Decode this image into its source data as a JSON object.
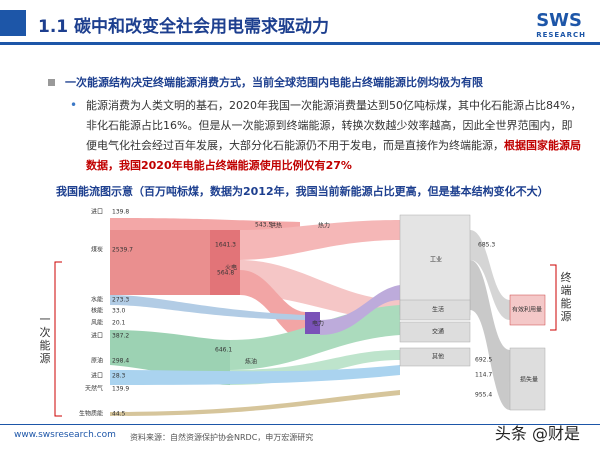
{
  "header": {
    "title": "1.1 碳中和改变全社会用电需求驱动力",
    "logo": "SWS",
    "logo_sub": "RESEARCH"
  },
  "bullets": [
    {
      "text": "一次能源结构决定终端能源消费方式，当前全球范围内电能占终端能源比例均极为有限"
    },
    {
      "text": "能源消费为人类文明的基石，2020年我国一次能源消费量达到50亿吨标煤，其中化石能源占比84%，非化石能源占比16%。但是从一次能源到终端能源，转换次数越少效率越高，因此全世界范围内，即便电气化社会经过百年发展，大部分化石能源仍不用于发电，而是直接作为终端能源，",
      "highlight": "根据国家能源局数据，我国2020年电能占终端能源使用比例仅有27%"
    }
  ],
  "figure": {
    "caption": "我国能流图示意（百万吨标煤，数据为2012年，我国当前新能源占比更高，但是基本结构变化不大）",
    "left_group": "一次能源",
    "right_group": "终端能源",
    "sources": [
      {
        "label": "进口",
        "value": "139.8"
      },
      {
        "label": "煤炭",
        "value": "2539.7"
      },
      {
        "label": "水能",
        "value": "273.3"
      },
      {
        "label": "核能",
        "value": "33.0"
      },
      {
        "label": "风能",
        "value": "20.1"
      },
      {
        "label": "进口",
        "value": "387.2"
      },
      {
        "label": "原油",
        "value": "298.4"
      },
      {
        "label": "进口",
        "value": "28.3"
      },
      {
        "label": "天然气",
        "value": "139.9"
      },
      {
        "label": "生物质能",
        "value": "44.5"
      }
    ],
    "nodes": [
      "火电",
      "供热",
      "热力",
      "电力",
      "炼油",
      "工业",
      "生活",
      "交通",
      "其他",
      "有效利用量",
      "损失量"
    ],
    "flow_values": [
      "1641.3",
      "543.5",
      "564.8",
      "646.1",
      "685.3",
      "692.5",
      "114.7",
      "955.4"
    ]
  },
  "footer": {
    "url": "www.swsresearch.com",
    "source": "资料来源：自然资源保护协会NRDC，申万宏源研究",
    "watermark": "头条 @财是"
  }
}
